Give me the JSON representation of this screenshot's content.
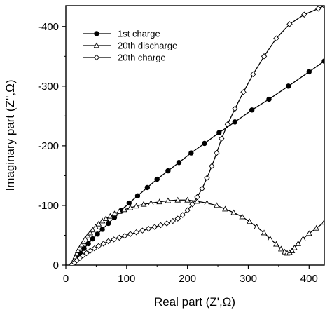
{
  "chart_data": {
    "type": "line",
    "xlabel": "Real part (Z',Ω)",
    "ylabel": "Imaginary part (Z'',Ω)",
    "xlim": [
      0,
      425
    ],
    "ylim": [
      0,
      -435
    ],
    "x_ticks": [
      0,
      100,
      200,
      300,
      400
    ],
    "y_ticks": [
      0,
      -100,
      -200,
      -300,
      -400
    ],
    "x_tick_labels": [
      "0",
      "100",
      "200",
      "300",
      "400"
    ],
    "y_tick_labels": [
      "0",
      "-100",
      "-200",
      "-300",
      "-400"
    ],
    "grid": false,
    "legend_position": "top-left",
    "series": [
      {
        "name": "1st charge",
        "marker": "filled-circle",
        "x": [
          10,
          14,
          18,
          24,
          30,
          37,
          44,
          52,
          60,
          70,
          80,
          92,
          104,
          118,
          134,
          150,
          168,
          186,
          206,
          228,
          252,
          278,
          306,
          334,
          366,
          400,
          425
        ],
        "y": [
          0,
          -6,
          -12,
          -20,
          -28,
          -36,
          -44,
          -52,
          -60,
          -70,
          -80,
          -92,
          -104,
          -116,
          -130,
          -144,
          -158,
          -172,
          -188,
          -204,
          -222,
          -240,
          -260,
          -278,
          -300,
          -324,
          -342
        ]
      },
      {
        "name": "20th discharge",
        "marker": "open-triangle",
        "x": [
          10,
          12,
          14,
          16,
          18,
          20,
          23,
          26,
          29,
          32,
          36,
          40,
          44,
          49,
          54,
          60,
          66,
          73,
          80,
          88,
          96,
          106,
          116,
          128,
          140,
          154,
          168,
          184,
          200,
          216,
          232,
          248,
          262,
          276,
          290,
          302,
          314,
          326,
          336,
          346,
          354,
          360,
          364,
          368,
          372,
          376,
          382,
          390,
          400,
          412,
          425
        ],
        "y": [
          0,
          -4,
          -9,
          -14,
          -19,
          -24,
          -29,
          -34,
          -39,
          -44,
          -49,
          -54,
          -59,
          -64,
          -69,
          -74,
          -78,
          -82,
          -86,
          -90,
          -93,
          -96,
          -99,
          -102,
          -104,
          -106,
          -108,
          -109,
          -109,
          -107,
          -104,
          -100,
          -94,
          -88,
          -81,
          -73,
          -64,
          -54,
          -44,
          -35,
          -27,
          -22,
          -20,
          -21,
          -24,
          -29,
          -36,
          -44,
          -53,
          -62,
          -72
        ]
      },
      {
        "name": "20th charge",
        "marker": "open-diamond",
        "x": [
          10,
          14,
          18,
          23,
          28,
          34,
          40,
          47,
          54,
          62,
          70,
          79,
          88,
          97,
          106,
          116,
          126,
          136,
          146,
          156,
          166,
          176,
          184,
          192,
          200,
          208,
          216,
          224,
          232,
          240,
          248,
          256,
          266,
          278,
          292,
          308,
          326,
          346,
          368,
          392,
          415,
          425
        ],
        "y": [
          0,
          -4,
          -8,
          -12,
          -16,
          -20,
          -24,
          -28,
          -32,
          -36,
          -40,
          -43,
          -46,
          -49,
          -52,
          -55,
          -58,
          -61,
          -64,
          -67,
          -70,
          -74,
          -78,
          -84,
          -92,
          -102,
          -114,
          -128,
          -146,
          -166,
          -188,
          -212,
          -236,
          -262,
          -290,
          -320,
          -350,
          -380,
          -404,
          -420,
          -430,
          -435
        ]
      }
    ]
  }
}
